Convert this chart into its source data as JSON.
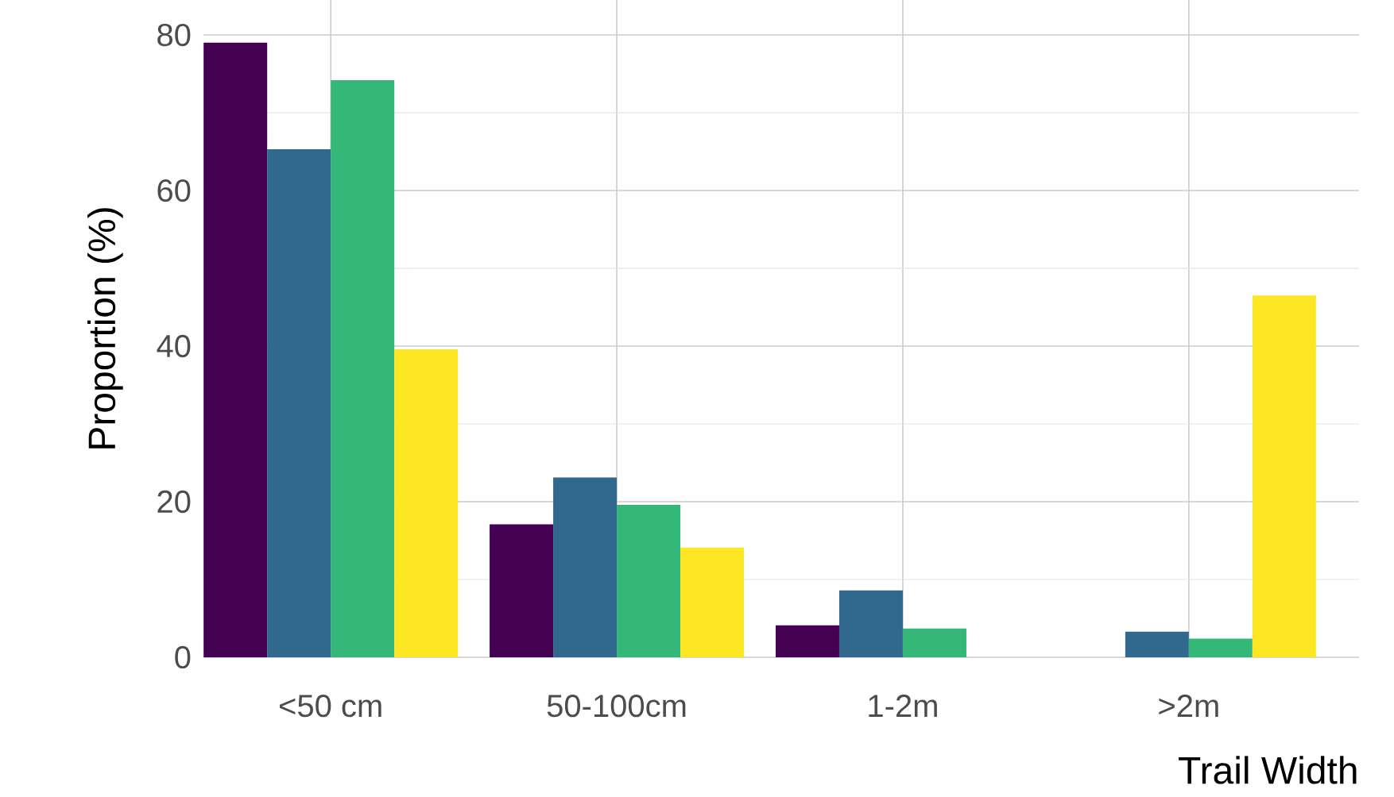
{
  "chart_data": {
    "type": "bar",
    "xlabel": "Trail Width",
    "ylabel": "Proportion (%)",
    "categories": [
      "<50 cm",
      "50-100cm",
      "1-2m",
      ">2m"
    ],
    "series": [
      {
        "color": "#440154",
        "values": [
          79.0,
          17.1,
          4.1,
          0
        ]
      },
      {
        "color": "#31688e",
        "values": [
          65.3,
          23.1,
          8.6,
          3.3
        ]
      },
      {
        "color": "#35b779",
        "values": [
          74.2,
          19.6,
          3.7,
          2.4
        ]
      },
      {
        "color": "#fde725",
        "values": [
          39.6,
          14.1,
          0,
          46.5
        ]
      }
    ],
    "ylim": [
      0,
      84.5
    ],
    "yticks": [
      0,
      {
        "value": 10,
        "label": null
      },
      20,
      {
        "value": 30,
        "label": null
      },
      40,
      {
        "value": 50,
        "label": null
      },
      60,
      {
        "value": 70,
        "label": null
      },
      80
    ],
    "grid": true
  }
}
